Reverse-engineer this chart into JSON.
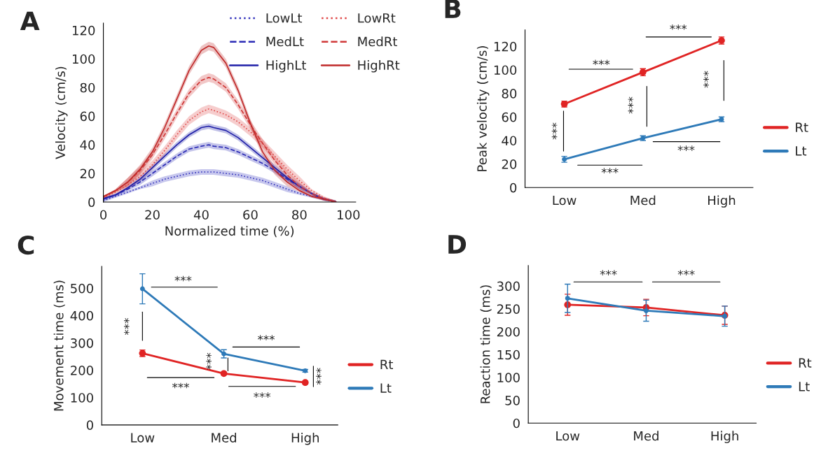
{
  "chart_data": [
    {
      "type": "line",
      "title": "A",
      "xlabel": "Normalized time (%)",
      "ylabel": "Velocity (cm/s)",
      "xlim": [
        0,
        103
      ],
      "ylim": [
        0,
        125
      ],
      "xticks": [
        0,
        20,
        40,
        60,
        80,
        100
      ],
      "yticks": [
        0,
        20,
        40,
        60,
        80,
        100,
        120
      ],
      "grid": false,
      "legend": "top right",
      "marker": "none",
      "x": [
        0,
        5,
        10,
        15,
        20,
        25,
        30,
        35,
        40,
        43,
        45,
        50,
        55,
        60,
        65,
        70,
        75,
        80,
        85,
        90,
        95
      ],
      "series": [
        {
          "name": "LowLt",
          "color": "#3636bd",
          "line_style": "dotted",
          "values": [
            1,
            4,
            7,
            10,
            13,
            16,
            18,
            20,
            21,
            21,
            21,
            20,
            19,
            17,
            15,
            12,
            9,
            6,
            4,
            2,
            0
          ],
          "lower": [
            0,
            3,
            6,
            9,
            11,
            14,
            16,
            18,
            19,
            19,
            19,
            18,
            17,
            15,
            13,
            10,
            7,
            5,
            3,
            1,
            0
          ],
          "upper": [
            3,
            5,
            8,
            11,
            15,
            18,
            20,
            22,
            23,
            23,
            23,
            22,
            21,
            19,
            17,
            14,
            11,
            7,
            5,
            3,
            1
          ]
        },
        {
          "name": "MedLt",
          "color": "#2a2ab5",
          "line_style": "dashed",
          "values": [
            2,
            5,
            9,
            14,
            20,
            26,
            32,
            37,
            39,
            40,
            39,
            38,
            35,
            31,
            27,
            22,
            16,
            11,
            6,
            2,
            0
          ],
          "lower": [
            1,
            4,
            8,
            12,
            18,
            24,
            30,
            35,
            37,
            38,
            37,
            36,
            33,
            29,
            25,
            20,
            14,
            9,
            5,
            1,
            0
          ],
          "upper": [
            3,
            6,
            10,
            16,
            22,
            28,
            34,
            39,
            41,
            42,
            41,
            40,
            37,
            33,
            29,
            24,
            18,
            13,
            7,
            3,
            1
          ]
        },
        {
          "name": "HighLt",
          "color": "#1f1fa8",
          "line_style": "solid",
          "values": [
            2.5,
            5,
            10,
            16,
            24,
            32,
            40,
            47,
            52,
            53,
            52,
            50,
            45,
            38,
            31,
            24,
            17,
            11,
            6,
            2,
            0
          ],
          "lower": [
            1.5,
            4,
            9,
            14,
            22,
            30,
            38,
            45,
            50,
            51,
            50,
            48,
            43,
            36,
            29,
            22,
            15,
            9,
            5,
            1,
            0
          ],
          "upper": [
            3,
            6,
            11,
            18,
            26,
            34,
            42,
            49,
            54,
            55,
            54,
            52,
            47,
            40,
            33,
            26,
            19,
            13,
            7,
            3,
            1
          ]
        },
        {
          "name": "LowRt",
          "color": "#e04a4a",
          "line_style": "dotted",
          "values": [
            3,
            7,
            12,
            18,
            26,
            36,
            47,
            57,
            63,
            65,
            64,
            61,
            56,
            49,
            41,
            32,
            23,
            15,
            8,
            3,
            0
          ],
          "lower": [
            2,
            6,
            9,
            15,
            23,
            33,
            44,
            54,
            60,
            62,
            61,
            58,
            53,
            46,
            38,
            29,
            20,
            12,
            7,
            2,
            0
          ],
          "upper": [
            4,
            8,
            15,
            21,
            29,
            39,
            50,
            60,
            66,
            68,
            67,
            64,
            59,
            52,
            44,
            35,
            26,
            18,
            9,
            4,
            1
          ]
        },
        {
          "name": "MedRt",
          "color": "#d03838",
          "line_style": "dashed",
          "values": [
            3.5,
            8,
            14,
            22,
            33,
            47,
            62,
            76,
            85,
            87,
            86,
            80,
            68,
            54,
            41,
            29,
            19,
            11,
            6,
            2,
            0
          ],
          "lower": [
            2.5,
            7,
            11,
            19,
            30,
            44,
            59,
            73,
            82,
            84,
            83,
            77,
            65,
            51,
            38,
            26,
            16,
            8,
            5,
            1,
            0
          ],
          "upper": [
            4,
            9,
            17,
            25,
            36,
            50,
            65,
            79,
            88,
            90,
            89,
            83,
            71,
            57,
            44,
            32,
            22,
            14,
            7,
            3,
            1
          ]
        },
        {
          "name": "HighRt",
          "color": "#c02a2a",
          "line_style": "solid",
          "values": [
            4,
            8,
            14,
            23,
            35,
            52,
            72,
            92,
            106,
            109,
            108,
            97,
            78,
            55,
            35,
            22,
            14,
            8,
            4,
            2,
            0
          ],
          "lower": [
            3,
            7,
            11,
            20,
            32,
            49,
            69,
            89,
            103,
            106,
            105,
            94,
            75,
            52,
            32,
            19,
            11,
            7,
            3,
            1,
            0
          ],
          "upper": [
            4,
            9,
            17,
            26,
            38,
            55,
            75,
            95,
            109,
            112,
            111,
            100,
            81,
            58,
            38,
            25,
            17,
            9,
            5,
            3,
            1
          ]
        }
      ]
    },
    {
      "type": "line",
      "title": "B",
      "ylabel": "Peak velocity (cm/s)",
      "categories": [
        "Low",
        "Med",
        "High"
      ],
      "ylim": [
        0,
        134
      ],
      "yticks": [
        0,
        20,
        40,
        60,
        80,
        100,
        120
      ],
      "grid": false,
      "legend": "right",
      "marker": "circle",
      "series": [
        {
          "name": "Rt",
          "color": "#e02424",
          "values": [
            71,
            98,
            125
          ],
          "errors": [
            2.5,
            3,
            3
          ]
        },
        {
          "name": "Lt",
          "color": "#2e7ab8",
          "values": [
            24,
            42,
            58
          ],
          "errors": [
            2.5,
            2,
            2
          ]
        }
      ],
      "annotations": [
        "***",
        "***",
        "***",
        "***",
        "***",
        "***",
        "***"
      ]
    },
    {
      "type": "line",
      "title": "C",
      "ylabel": "Movement time (ms)",
      "categories": [
        "Low",
        "Med",
        "High"
      ],
      "ylim": [
        0,
        580
      ],
      "yticks": [
        0,
        100,
        200,
        300,
        400,
        500
      ],
      "grid": false,
      "legend": "right",
      "marker": "circle",
      "series": [
        {
          "name": "Rt",
          "color": "#e02424",
          "values": [
            262,
            188,
            155
          ],
          "errors": [
            12,
            5,
            5
          ]
        },
        {
          "name": "Lt",
          "color": "#2e7ab8",
          "values": [
            498,
            260,
            198
          ],
          "errors": [
            55,
            15,
            5
          ]
        }
      ],
      "annotations": [
        "***",
        "***",
        "***",
        "***",
        "***",
        "***",
        "***"
      ]
    },
    {
      "type": "line",
      "title": "D",
      "ylabel": "Reaction time (ms)",
      "categories": [
        "Low",
        "Med",
        "High"
      ],
      "ylim": [
        0,
        345
      ],
      "yticks": [
        0,
        50,
        100,
        150,
        200,
        250,
        300
      ],
      "grid": false,
      "legend": "right",
      "marker": "circle",
      "series": [
        {
          "name": "Rt",
          "color": "#e02424",
          "values": [
            259,
            253,
            236
          ],
          "errors": [
            23,
            18,
            20
          ]
        },
        {
          "name": "Lt",
          "color": "#2e7ab8",
          "values": [
            273,
            246,
            234
          ],
          "errors": [
            31,
            23,
            22
          ]
        }
      ],
      "annotations": [
        "***",
        "***"
      ]
    }
  ]
}
